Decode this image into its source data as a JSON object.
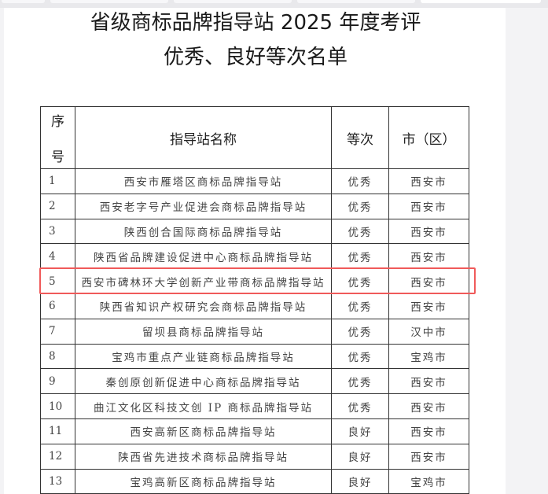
{
  "document": {
    "title_line1": "省级商标品牌指导站 2025 年度考评",
    "title_line2": "优秀、良好等次名单"
  },
  "table": {
    "headers": {
      "index_1": "序",
      "index_2": "号",
      "name": "指导站名称",
      "grade": "等次",
      "city": "市（区）"
    },
    "rows": [
      {
        "no": "1",
        "name": "西安市雁塔区商标品牌指导站",
        "grade": "优秀",
        "city": "西安市"
      },
      {
        "no": "2",
        "name": "西安老字号产业促进会商标品牌指导站",
        "grade": "优秀",
        "city": "西安市"
      },
      {
        "no": "3",
        "name": "陕西创合国际商标品牌指导站",
        "grade": "优秀",
        "city": "西安市"
      },
      {
        "no": "4",
        "name": "陕西省品牌建设促进中心商标品牌指导站",
        "grade": "优秀",
        "city": "西安市"
      },
      {
        "no": "5",
        "name": "西安市碑林环大学创新产业带商标品牌指导站",
        "grade": "优秀",
        "city": "西安市"
      },
      {
        "no": "6",
        "name": "陕西省知识产权研究会商标品牌指导站",
        "grade": "优秀",
        "city": "西安市"
      },
      {
        "no": "7",
        "name": "留坝县商标品牌指导站",
        "grade": "优秀",
        "city": "汉中市"
      },
      {
        "no": "8",
        "name": "宝鸡市重点产业链商标品牌指导站",
        "grade": "优秀",
        "city": "宝鸡市"
      },
      {
        "no": "9",
        "name": "秦创原创新促进中心商标品牌指导站",
        "grade": "优秀",
        "city": "西安市"
      },
      {
        "no": "10",
        "name": "曲江文化区科技文创 IP 商标品牌指导站",
        "grade": "优秀",
        "city": "西安市"
      },
      {
        "no": "11",
        "name": "西安高新区商标品牌指导站",
        "grade": "良好",
        "city": "西安市"
      },
      {
        "no": "12",
        "name": "陕西省先进技术商标品牌指导站",
        "grade": "良好",
        "city": "西安市"
      },
      {
        "no": "13",
        "name": "宝鸡高新区商标品牌指导站",
        "grade": "良好",
        "city": "宝鸡市"
      }
    ],
    "highlighted_row": "5",
    "highlight_color": "#f05a5a"
  }
}
